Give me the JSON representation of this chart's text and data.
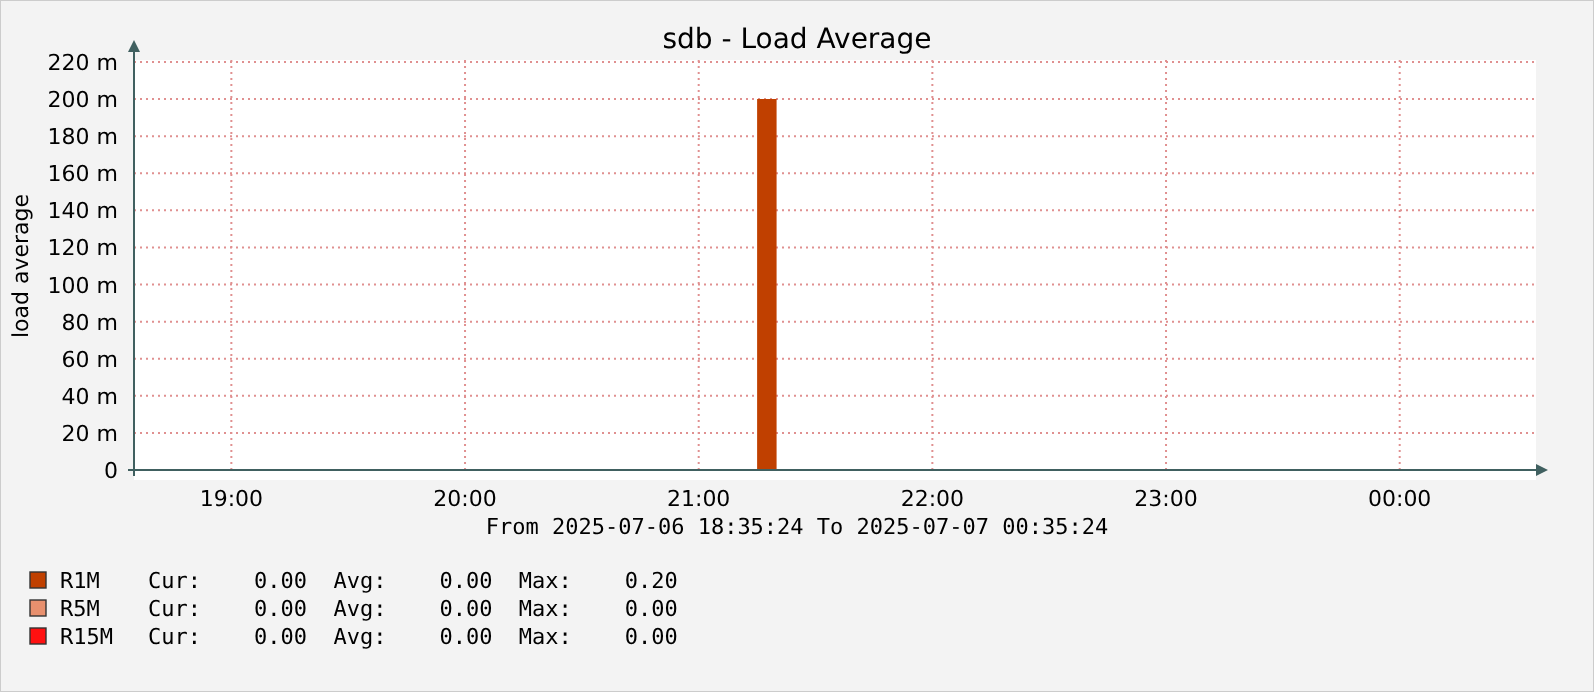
{
  "chart_data": {
    "type": "area",
    "title": "sdb - Load Average",
    "ylabel": "load average",
    "xlabel": "From 2025-07-06 18:35:24 To 2025-07-07 00:35:24",
    "xlim": [
      "2025-07-06T18:35",
      "2025-07-07T00:35"
    ],
    "xticks": [
      {
        "value": "2025-07-06T19:00",
        "label": "19:00"
      },
      {
        "value": "2025-07-06T20:00",
        "label": "20:00"
      },
      {
        "value": "2025-07-06T21:00",
        "label": "21:00"
      },
      {
        "value": "2025-07-06T22:00",
        "label": "22:00"
      },
      {
        "value": "2025-07-06T23:00",
        "label": "23:00"
      },
      {
        "value": "2025-07-07T00:00",
        "label": "00:00"
      }
    ],
    "ylim": [
      0,
      220
    ],
    "yticks": [
      0,
      {
        "value": 20,
        "label": "20 m"
      },
      {
        "value": 40,
        "label": "40 m"
      },
      {
        "value": 60,
        "label": "60 m"
      },
      {
        "value": 80,
        "label": "80 m"
      },
      {
        "value": 100,
        "label": "100 m"
      },
      {
        "value": 120,
        "label": "120 m"
      },
      {
        "value": 140,
        "label": "140 m"
      },
      {
        "value": 160,
        "label": "160 m"
      },
      {
        "value": 180,
        "label": "180 m"
      },
      {
        "value": 200,
        "label": "200 m"
      },
      {
        "value": 220,
        "label": "220 m"
      }
    ],
    "grid": true,
    "legend": "bottom left",
    "series": [
      {
        "name": "R1M",
        "color": "#c04000",
        "x": [
          "2025-07-06T18:35",
          "2025-07-06T21:15",
          "2025-07-06T21:20",
          "2025-07-07T00:35"
        ],
        "values": [
          0,
          200,
          0,
          0
        ]
      },
      {
        "name": "R5M",
        "color": "#e8906e"
      },
      {
        "name": "R15M",
        "color": "#ff1010"
      }
    ],
    "annotations": [
      "Cur:    0.00  Avg:    0.00  Max:    0.20",
      "Cur:    0.00  Avg:    0.00  Max:    0.00",
      "Cur:    0.00  Avg:    0.00  Max:    0.00"
    ]
  }
}
